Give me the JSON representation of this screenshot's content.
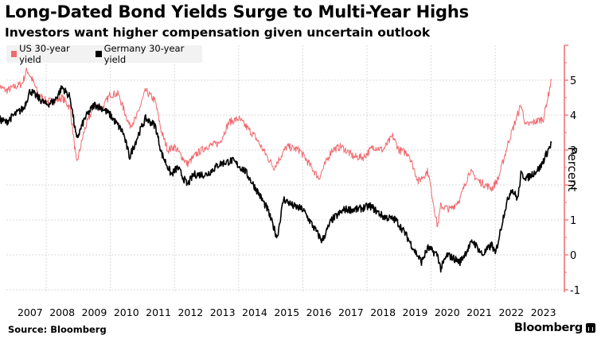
{
  "header": {
    "title": "Long-Dated Bond Yields Surge to Multi-Year Highs",
    "subtitle": "Investors want higher compensation given uncertain outlook"
  },
  "footer": {
    "source": "Source: Bloomberg",
    "brand": "Bloomberg"
  },
  "colors": {
    "us": "#f06a6f",
    "germany": "#000000",
    "axis": "#f06a6f",
    "grid": "#d9d9d9"
  },
  "chart_data": {
    "type": "line",
    "title": "Long-Dated Bond Yields Surge to Multi-Year Highs",
    "subtitle": "Investors want higher compensation given uncertain outlook",
    "xlabel": "",
    "ylabel": "Percent",
    "xlim": [
      2006.5,
      2023.9
    ],
    "ylim": [
      -1,
      5.9
    ],
    "y_ticks": [
      -1,
      0,
      1,
      2,
      3,
      4,
      5
    ],
    "x_tick_labels": [
      "2007",
      "2008",
      "2009",
      "2010",
      "2011",
      "2012",
      "2013",
      "2014",
      "2015",
      "2016",
      "2017",
      "2018",
      "2019",
      "2020",
      "2021",
      "2022",
      "2023"
    ],
    "grid": true,
    "y_axis_side": "right",
    "legend": {
      "position": "top-left",
      "entries": [
        "US 30-year yield",
        "Germany 30-year yield"
      ]
    },
    "series": [
      {
        "name": "US 30-year yield",
        "color": "#f06a6f",
        "x": [
          2006.5,
          2006.75,
          2007.0,
          2007.25,
          2007.4,
          2007.6,
          2007.75,
          2008.0,
          2008.25,
          2008.5,
          2008.75,
          2008.95,
          2009.2,
          2009.5,
          2009.75,
          2010.0,
          2010.25,
          2010.6,
          2010.8,
          2011.1,
          2011.4,
          2011.6,
          2011.8,
          2012.0,
          2012.4,
          2012.7,
          2013.0,
          2013.4,
          2013.7,
          2014.0,
          2014.5,
          2014.9,
          2015.1,
          2015.5,
          2015.9,
          2016.2,
          2016.5,
          2016.9,
          2017.2,
          2017.6,
          2017.9,
          2018.2,
          2018.5,
          2018.8,
          2019.0,
          2019.3,
          2019.6,
          2019.9,
          2020.2,
          2020.3,
          2020.6,
          2020.9,
          2021.2,
          2021.5,
          2021.9,
          2022.1,
          2022.4,
          2022.8,
          2022.95,
          2023.2,
          2023.5,
          2023.75
        ],
        "values": [
          4.85,
          4.7,
          4.8,
          4.9,
          5.3,
          4.95,
          4.6,
          4.4,
          4.4,
          4.5,
          4.2,
          2.6,
          3.6,
          4.3,
          4.2,
          4.6,
          4.6,
          3.7,
          3.9,
          4.7,
          4.4,
          3.5,
          3.0,
          3.1,
          2.6,
          2.9,
          3.1,
          3.2,
          3.8,
          3.9,
          3.4,
          2.8,
          2.5,
          3.1,
          3.0,
          2.6,
          2.2,
          3.0,
          3.1,
          2.8,
          2.8,
          3.1,
          3.0,
          3.4,
          3.0,
          2.9,
          2.1,
          2.4,
          0.8,
          1.4,
          1.3,
          1.6,
          2.4,
          2.1,
          1.9,
          2.2,
          3.2,
          4.3,
          3.7,
          3.8,
          3.9,
          5.0
        ]
      },
      {
        "name": "Germany 30-year yield",
        "color": "#000000",
        "x": [
          2006.5,
          2006.75,
          2007.0,
          2007.3,
          2007.5,
          2007.75,
          2008.0,
          2008.25,
          2008.5,
          2008.75,
          2008.95,
          2009.2,
          2009.5,
          2009.75,
          2010.0,
          2010.4,
          2010.6,
          2010.9,
          2011.1,
          2011.4,
          2011.6,
          2011.9,
          2012.1,
          2012.4,
          2012.6,
          2013.0,
          2013.4,
          2013.8,
          2014.2,
          2014.6,
          2014.9,
          2015.2,
          2015.4,
          2015.7,
          2016.0,
          2016.4,
          2016.6,
          2016.9,
          2017.3,
          2017.7,
          2018.1,
          2018.5,
          2018.9,
          2019.2,
          2019.5,
          2019.7,
          2019.9,
          2020.2,
          2020.3,
          2020.5,
          2020.9,
          2021.3,
          2021.6,
          2021.9,
          2022.0,
          2022.3,
          2022.5,
          2022.7,
          2022.8,
          2023.0,
          2023.4,
          2023.75
        ],
        "values": [
          3.9,
          3.8,
          4.0,
          4.2,
          4.7,
          4.5,
          4.3,
          4.4,
          4.8,
          4.5,
          3.3,
          3.9,
          4.3,
          4.2,
          4.0,
          3.5,
          2.8,
          3.5,
          3.9,
          3.7,
          2.9,
          2.3,
          2.5,
          2.0,
          2.3,
          2.3,
          2.6,
          2.7,
          2.4,
          1.8,
          1.3,
          0.5,
          1.6,
          1.4,
          1.3,
          0.7,
          0.4,
          1.0,
          1.3,
          1.3,
          1.4,
          1.1,
          1.0,
          0.6,
          0.1,
          -0.2,
          0.2,
          0.0,
          -0.4,
          0.0,
          -0.2,
          0.4,
          0.0,
          0.3,
          0.0,
          1.3,
          1.9,
          1.6,
          2.3,
          2.2,
          2.5,
          3.2
        ]
      }
    ]
  }
}
